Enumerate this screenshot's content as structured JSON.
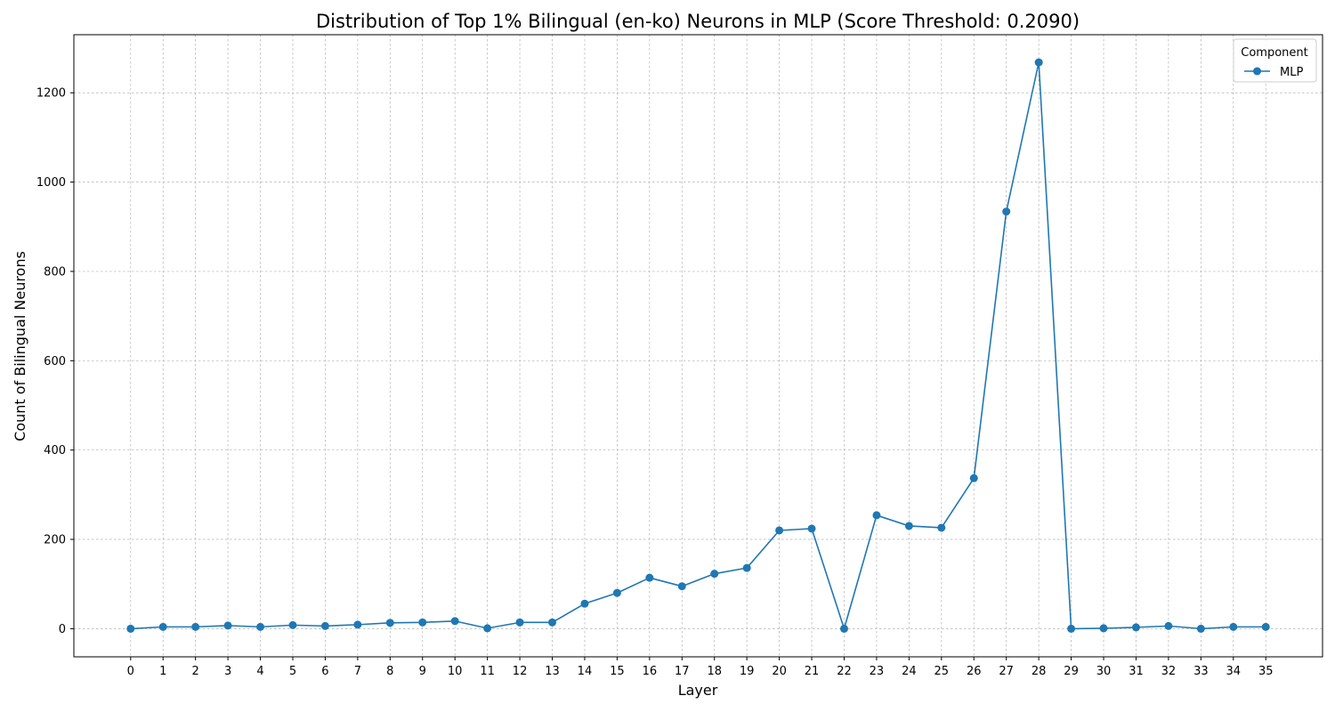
{
  "chart_data": {
    "type": "line",
    "title": "Distribution of Top 1% Bilingual (en-ko) Neurons in MLP (Score Threshold: 0.2090)",
    "xlabel": "Layer",
    "ylabel": "Count of Bilingual Neurons",
    "x": [
      0,
      1,
      2,
      3,
      4,
      5,
      6,
      7,
      8,
      9,
      10,
      11,
      12,
      13,
      14,
      15,
      16,
      17,
      18,
      19,
      20,
      21,
      22,
      23,
      24,
      25,
      26,
      27,
      28,
      29,
      30,
      31,
      32,
      33,
      34,
      35
    ],
    "x_tick_labels": [
      "0",
      "1",
      "2",
      "3",
      "4",
      "5",
      "6",
      "7",
      "8",
      "9",
      "10",
      "11",
      "12",
      "13",
      "14",
      "15",
      "16",
      "17",
      "18",
      "19",
      "20",
      "21",
      "22",
      "23",
      "24",
      "25",
      "26",
      "27",
      "28",
      "29",
      "30",
      "31",
      "32",
      "33",
      "34",
      "35"
    ],
    "xlim": [
      -1.75,
      36.75
    ],
    "ylim": [
      -63,
      1330
    ],
    "y_ticks": [
      0,
      200,
      400,
      600,
      800,
      1000,
      1200
    ],
    "y_tick_labels": [
      "0",
      "200",
      "400",
      "600",
      "800",
      "1000",
      "1200"
    ],
    "grid": true,
    "legend": {
      "title": "Component",
      "position": "top-right"
    },
    "series": [
      {
        "name": "MLP",
        "color": "#1f77b4",
        "marker": "circle",
        "values": [
          0,
          4,
          4,
          7,
          4,
          8,
          6,
          9,
          13,
          14,
          17,
          1,
          14,
          14,
          56,
          80,
          114,
          95,
          123,
          136,
          220,
          224,
          0,
          254,
          230,
          226,
          337,
          934,
          1268,
          0,
          1,
          3,
          6,
          0,
          4,
          4
        ]
      }
    ]
  }
}
